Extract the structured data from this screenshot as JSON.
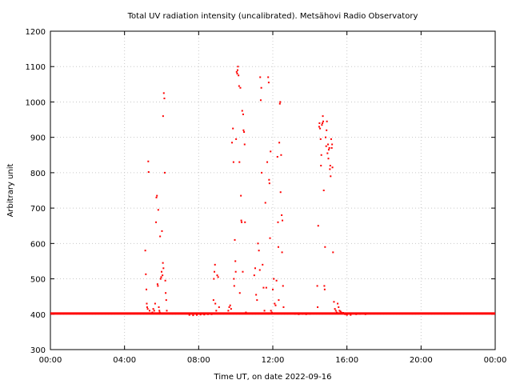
{
  "chart_data": {
    "type": "scatter",
    "title": "Total UV radiation intensity (uncalibrated). Metsähovi Radio Observatory",
    "xlabel": "Time UT, on date 2022-09-16",
    "ylabel": "Arbitrary unit",
    "xlim": [
      0,
      24
    ],
    "ylim": [
      300,
      1200
    ],
    "xticks": [
      0,
      4,
      8,
      12,
      16,
      20,
      24
    ],
    "xtick_labels": [
      "00:00",
      "04:00",
      "08:00",
      "12:00",
      "16:00",
      "20:00",
      "00:00"
    ],
    "yticks": [
      300,
      400,
      500,
      600,
      700,
      800,
      900,
      1000,
      1100,
      1200
    ],
    "ytick_labels": [
      "300",
      "400",
      "500",
      "600",
      "700",
      "800",
      "900",
      "1000",
      "1100",
      "1200"
    ],
    "grid": true,
    "color": "#ff0000",
    "baseline": {
      "value": 402,
      "x_range": [
        0,
        24
      ]
    },
    "series": [
      {
        "points": [
          [
            5.12,
            580
          ],
          [
            5.15,
            513
          ],
          [
            5.18,
            470
          ],
          [
            5.2,
            430
          ],
          [
            5.22,
            420
          ],
          [
            5.25,
            415
          ],
          [
            5.28,
            832
          ],
          [
            5.3,
            802
          ],
          [
            5.35,
            410
          ],
          [
            5.5,
            405
          ],
          [
            5.55,
            415
          ],
          [
            5.6,
            410
          ],
          [
            5.65,
            430
          ],
          [
            5.7,
            660
          ],
          [
            5.72,
            730
          ],
          [
            5.75,
            735
          ],
          [
            5.78,
            485
          ],
          [
            5.8,
            480
          ],
          [
            5.82,
            695
          ],
          [
            5.85,
            420
          ],
          [
            5.88,
            410
          ],
          [
            5.9,
            405
          ],
          [
            5.92,
            620
          ],
          [
            5.95,
            500
          ],
          [
            5.98,
            505
          ],
          [
            6.0,
            520
          ],
          [
            6.02,
            635
          ],
          [
            6.05,
            510
          ],
          [
            6.07,
            545
          ],
          [
            6.08,
            960
          ],
          [
            6.1,
            530
          ],
          [
            6.12,
            1025
          ],
          [
            6.15,
            1010
          ],
          [
            6.17,
            800
          ],
          [
            6.2,
            495
          ],
          [
            6.22,
            460
          ],
          [
            6.25,
            440
          ],
          [
            6.28,
            410
          ],
          [
            8.8,
            440
          ],
          [
            8.82,
            500
          ],
          [
            8.85,
            520
          ],
          [
            8.88,
            540
          ],
          [
            8.9,
            430
          ],
          [
            8.95,
            410
          ],
          [
            9.0,
            510
          ],
          [
            9.05,
            505
          ],
          [
            9.1,
            420
          ],
          [
            9.6,
            410
          ],
          [
            9.65,
            420
          ],
          [
            9.7,
            425
          ],
          [
            9.75,
            415
          ],
          [
            9.8,
            885
          ],
          [
            9.85,
            925
          ],
          [
            9.88,
            830
          ],
          [
            9.9,
            500
          ],
          [
            9.92,
            480
          ],
          [
            9.95,
            610
          ],
          [
            9.98,
            550
          ],
          [
            10.0,
            520
          ],
          [
            10.02,
            895
          ],
          [
            10.05,
            1085
          ],
          [
            10.08,
            1080
          ],
          [
            10.1,
            1090
          ],
          [
            10.12,
            1100
          ],
          [
            10.15,
            1075
          ],
          [
            10.18,
            1045
          ],
          [
            10.2,
            830
          ],
          [
            10.22,
            460
          ],
          [
            10.25,
            1040
          ],
          [
            10.28,
            735
          ],
          [
            10.3,
            665
          ],
          [
            10.32,
            660
          ],
          [
            10.35,
            975
          ],
          [
            10.38,
            520
          ],
          [
            10.4,
            965
          ],
          [
            10.42,
            920
          ],
          [
            10.45,
            915
          ],
          [
            10.48,
            880
          ],
          [
            10.5,
            660
          ],
          [
            10.55,
            405
          ],
          [
            10.6,
            402
          ],
          [
            10.7,
            402
          ],
          [
            11.0,
            510
          ],
          [
            11.05,
            530
          ],
          [
            11.1,
            455
          ],
          [
            11.15,
            440
          ],
          [
            11.2,
            600
          ],
          [
            11.25,
            580
          ],
          [
            11.3,
            525
          ],
          [
            11.32,
            1070
          ],
          [
            11.35,
            1005
          ],
          [
            11.38,
            1040
          ],
          [
            11.4,
            800
          ],
          [
            11.45,
            540
          ],
          [
            11.5,
            475
          ],
          [
            11.55,
            410
          ],
          [
            11.6,
            715
          ],
          [
            11.65,
            475
          ],
          [
            11.7,
            830
          ],
          [
            11.75,
            1070
          ],
          [
            11.78,
            1055
          ],
          [
            11.8,
            780
          ],
          [
            11.82,
            770
          ],
          [
            11.85,
            615
          ],
          [
            11.88,
            860
          ],
          [
            11.9,
            410
          ],
          [
            11.95,
            405
          ],
          [
            12.0,
            470
          ],
          [
            12.05,
            500
          ],
          [
            12.1,
            430
          ],
          [
            12.15,
            425
          ],
          [
            12.2,
            495
          ],
          [
            12.25,
            845
          ],
          [
            12.28,
            660
          ],
          [
            12.3,
            590
          ],
          [
            12.32,
            440
          ],
          [
            12.35,
            885
          ],
          [
            12.38,
            995
          ],
          [
            12.4,
            1000
          ],
          [
            12.42,
            745
          ],
          [
            12.45,
            850
          ],
          [
            12.48,
            680
          ],
          [
            12.5,
            575
          ],
          [
            12.52,
            665
          ],
          [
            12.55,
            480
          ],
          [
            12.58,
            420
          ],
          [
            14.4,
            480
          ],
          [
            14.42,
            420
          ],
          [
            14.45,
            650
          ],
          [
            14.5,
            930
          ],
          [
            14.52,
            940
          ],
          [
            14.55,
            925
          ],
          [
            14.58,
            895
          ],
          [
            14.6,
            820
          ],
          [
            14.62,
            850
          ],
          [
            14.65,
            935
          ],
          [
            14.68,
            940
          ],
          [
            14.7,
            960
          ],
          [
            14.72,
            945
          ],
          [
            14.75,
            750
          ],
          [
            14.78,
            480
          ],
          [
            14.8,
            470
          ],
          [
            14.82,
            590
          ],
          [
            14.85,
            900
          ],
          [
            14.88,
            875
          ],
          [
            14.9,
            920
          ],
          [
            14.92,
            945
          ],
          [
            14.95,
            855
          ],
          [
            14.98,
            880
          ],
          [
            15.0,
            840
          ],
          [
            15.02,
            865
          ],
          [
            15.05,
            870
          ],
          [
            15.08,
            810
          ],
          [
            15.1,
            820
          ],
          [
            15.12,
            790
          ],
          [
            15.15,
            895
          ],
          [
            15.18,
            870
          ],
          [
            15.2,
            880
          ],
          [
            15.22,
            815
          ],
          [
            15.25,
            575
          ],
          [
            15.3,
            435
          ],
          [
            15.35,
            415
          ],
          [
            15.4,
            410
          ],
          [
            15.45,
            405
          ],
          [
            15.5,
            430
          ],
          [
            15.55,
            420
          ],
          [
            15.6,
            410
          ],
          [
            15.65,
            408
          ],
          [
            15.7,
            405
          ],
          [
            15.8,
            404
          ],
          [
            15.9,
            400
          ],
          [
            16.0,
            398
          ],
          [
            16.2,
            398
          ],
          [
            16.5,
            400
          ],
          [
            16.7,
            401
          ],
          [
            17.0,
            400
          ],
          [
            7.5,
            398
          ],
          [
            7.7,
            397
          ],
          [
            7.9,
            398
          ],
          [
            8.1,
            399
          ],
          [
            8.3,
            399
          ],
          [
            8.5,
            400
          ],
          [
            8.7,
            400
          ],
          [
            13.2,
            401
          ],
          [
            13.4,
            400
          ],
          [
            13.6,
            401
          ],
          [
            13.8,
            400
          ],
          [
            14.0,
            401
          ],
          [
            14.2,
            402
          ]
        ]
      }
    ]
  }
}
